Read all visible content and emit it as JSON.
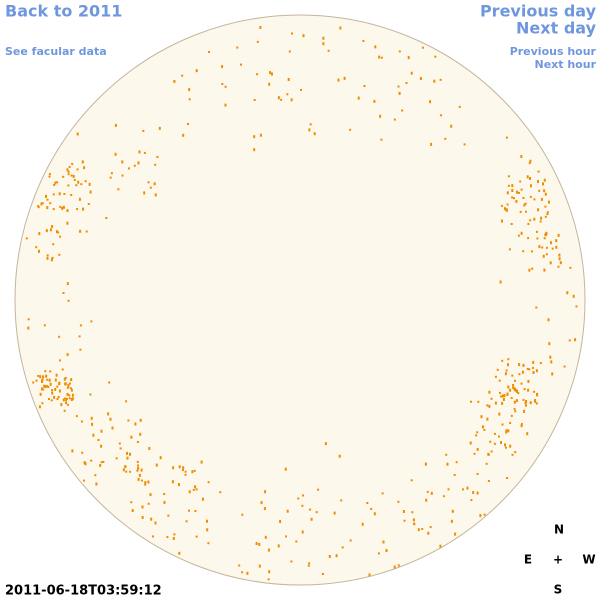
{
  "links": {
    "back": "Back to 2011",
    "facular": "See facular data",
    "previous_day": "Previous day",
    "next_day": "Next day",
    "previous_hour": "Previous hour",
    "next_hour": "Next hour"
  },
  "timestamp": "2011-06-18T03:59:12",
  "compass": {
    "north": "N",
    "east": "E",
    "center": "+",
    "west": "W",
    "south": "S"
  }
}
